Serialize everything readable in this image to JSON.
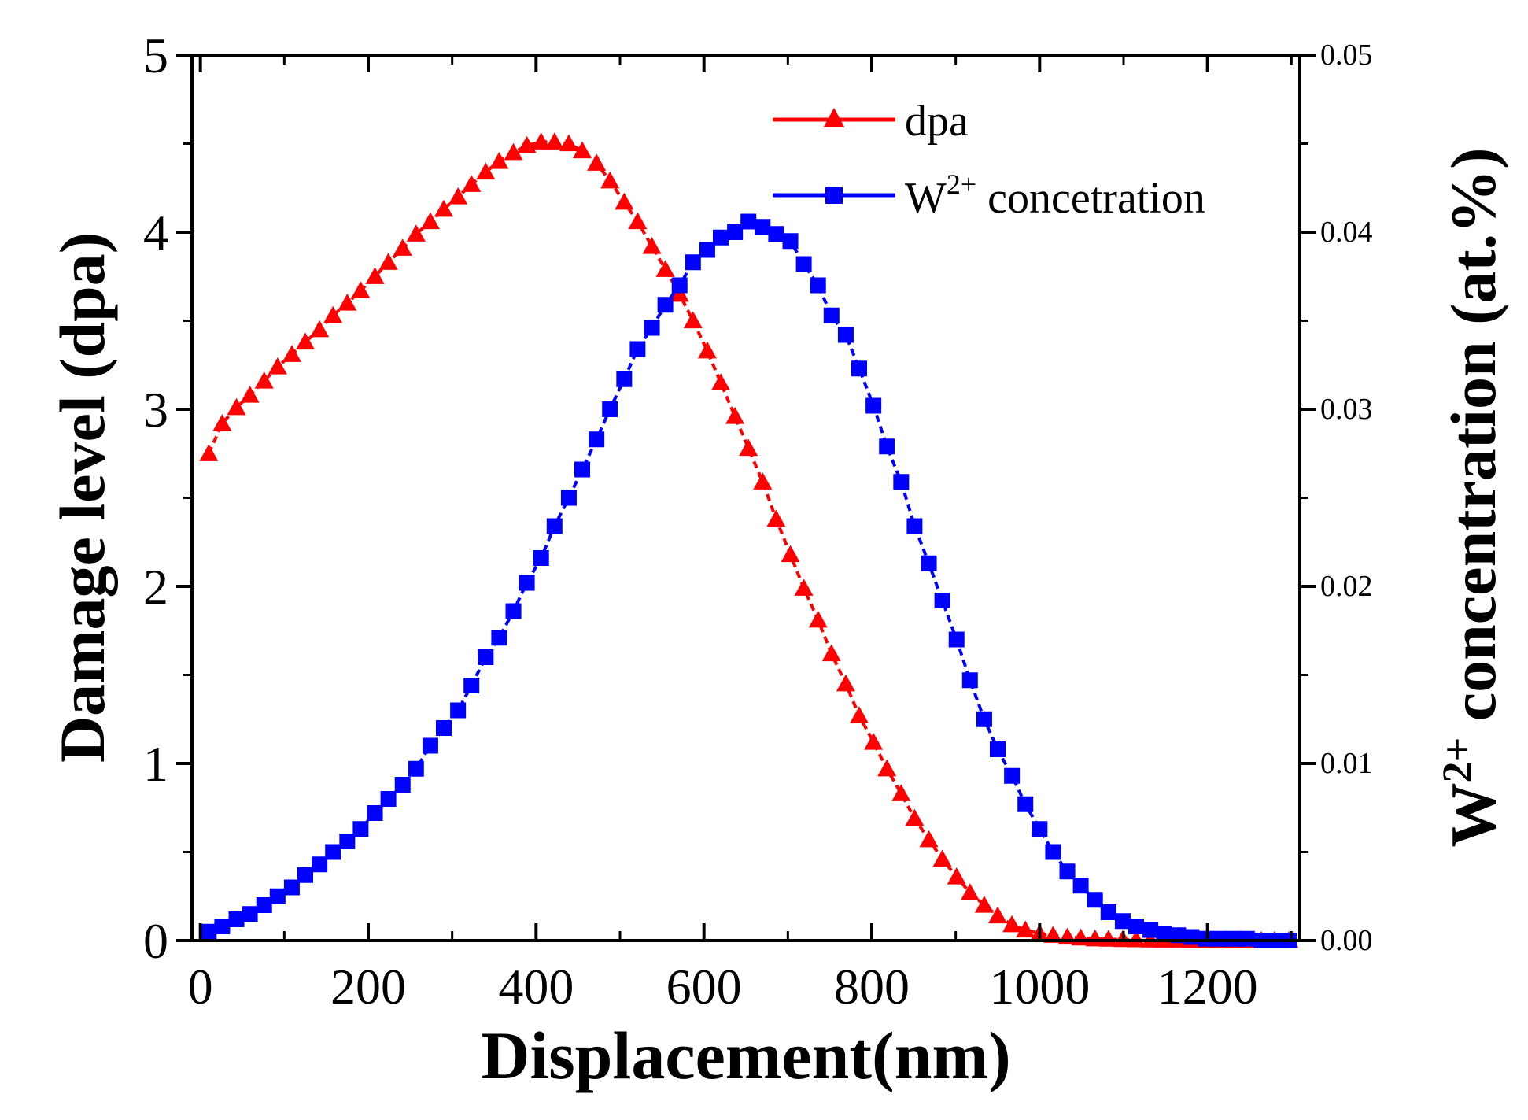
{
  "chart_data": {
    "type": "line",
    "title": "",
    "xlabel": "Displacement(nm)",
    "ylabel_left": "Damage level (dpa)",
    "ylabel_right": {
      "main": "W",
      "sup": "2+",
      "rest": " concentration (at.%)"
    },
    "xlim": [
      -10,
      1310
    ],
    "ylim_left": [
      0,
      5
    ],
    "ylim_right": [
      0,
      0.05
    ],
    "x_ticks": [
      0,
      200,
      400,
      600,
      800,
      1000,
      1200
    ],
    "x_tick_labels": [
      "0",
      "200",
      "400",
      "600",
      "800",
      "1000",
      "1200"
    ],
    "y_left_ticks": [
      0,
      1,
      2,
      3,
      4,
      5
    ],
    "y_left_tick_labels": [
      "0",
      "1",
      "2",
      "3",
      "4",
      "5"
    ],
    "y_right_ticks": [
      0,
      0.01,
      0.02,
      0.03,
      0.04,
      0.05
    ],
    "y_right_tick_labels": [
      "0.00",
      "0.01",
      "0.02",
      "0.03",
      "0.04",
      "0.05"
    ],
    "grid": false,
    "legend_position": "top-right",
    "series": [
      {
        "name": "dpa",
        "axis": "left",
        "marker": "triangle",
        "color": "#ff0000",
        "line_style": "dashed",
        "x": [
          10,
          26,
          43,
          59,
          76,
          92,
          109,
          125,
          142,
          158,
          175,
          191,
          208,
          224,
          241,
          257,
          274,
          290,
          307,
          323,
          340,
          356,
          373,
          389,
          406,
          422,
          439,
          455,
          472,
          488,
          505,
          521,
          538,
          554,
          571,
          587,
          604,
          620,
          637,
          653,
          670,
          686,
          703,
          719,
          736,
          752,
          769,
          785,
          802,
          818,
          835,
          851,
          868,
          884,
          901,
          917,
          934,
          950,
          967,
          983,
          1000,
          1016,
          1033,
          1049,
          1066,
          1082,
          1099,
          1115,
          1132,
          1148,
          1165,
          1181,
          1198,
          1214,
          1231,
          1247,
          1264,
          1280,
          1297
        ],
        "y": [
          2.75,
          2.92,
          3.01,
          3.08,
          3.16,
          3.24,
          3.31,
          3.38,
          3.45,
          3.53,
          3.6,
          3.67,
          3.75,
          3.83,
          3.91,
          3.99,
          4.06,
          4.13,
          4.2,
          4.27,
          4.34,
          4.4,
          4.45,
          4.49,
          4.51,
          4.51,
          4.5,
          4.46,
          4.39,
          4.29,
          4.17,
          4.06,
          3.92,
          3.79,
          3.65,
          3.5,
          3.33,
          3.15,
          2.96,
          2.78,
          2.59,
          2.38,
          2.18,
          1.99,
          1.81,
          1.62,
          1.45,
          1.27,
          1.12,
          0.97,
          0.83,
          0.69,
          0.57,
          0.46,
          0.36,
          0.27,
          0.2,
          0.14,
          0.09,
          0.06,
          0.04,
          0.03,
          0.02,
          0.015,
          0.01,
          0.008,
          0.006,
          0.005,
          0.004,
          0.003,
          0.003,
          0.002,
          0.002,
          0.002,
          0.001,
          0.001,
          0.001,
          0.001,
          0.001
        ]
      },
      {
        "name": "W2+ concetration",
        "axis": "right",
        "marker": "square",
        "color": "#0000ff",
        "line_style": "dashed",
        "x": [
          10,
          26,
          43,
          59,
          76,
          92,
          109,
          125,
          142,
          158,
          175,
          191,
          208,
          224,
          241,
          257,
          274,
          290,
          307,
          323,
          340,
          356,
          373,
          389,
          406,
          422,
          439,
          455,
          472,
          488,
          505,
          521,
          538,
          554,
          571,
          587,
          604,
          620,
          637,
          653,
          670,
          686,
          703,
          719,
          736,
          752,
          769,
          785,
          802,
          818,
          835,
          851,
          868,
          884,
          901,
          917,
          934,
          950,
          967,
          983,
          1000,
          1016,
          1033,
          1049,
          1066,
          1082,
          1099,
          1115,
          1132,
          1148,
          1165,
          1181,
          1198,
          1214,
          1231,
          1247,
          1264,
          1280,
          1297
        ],
        "y": [
          0.0005,
          0.0008,
          0.0012,
          0.0015,
          0.002,
          0.0025,
          0.003,
          0.0037,
          0.0043,
          0.005,
          0.0056,
          0.0063,
          0.0072,
          0.008,
          0.0088,
          0.0097,
          0.011,
          0.012,
          0.013,
          0.0144,
          0.016,
          0.0171,
          0.0186,
          0.0202,
          0.0216,
          0.0234,
          0.025,
          0.0266,
          0.0283,
          0.03,
          0.0317,
          0.0334,
          0.0346,
          0.0359,
          0.037,
          0.0383,
          0.039,
          0.0397,
          0.04,
          0.0406,
          0.0403,
          0.0399,
          0.0395,
          0.0382,
          0.037,
          0.0353,
          0.0342,
          0.0323,
          0.0302,
          0.0279,
          0.0259,
          0.0234,
          0.0213,
          0.0192,
          0.017,
          0.0147,
          0.0125,
          0.0108,
          0.0093,
          0.0077,
          0.0063,
          0.005,
          0.0039,
          0.0031,
          0.0023,
          0.0016,
          0.0011,
          0.0008,
          0.0006,
          0.0004,
          0.0003,
          0.0002,
          0.0001,
          0.0001,
          0.0001,
          0.0001,
          0.0,
          0.0,
          0.0
        ]
      }
    ],
    "legend": [
      {
        "label": "dpa",
        "marker": "triangle",
        "color": "#ff0000"
      },
      {
        "label_main": "W",
        "label_sup": "2+",
        "label_rest": " concetration",
        "marker": "square",
        "color": "#0000ff"
      }
    ]
  }
}
